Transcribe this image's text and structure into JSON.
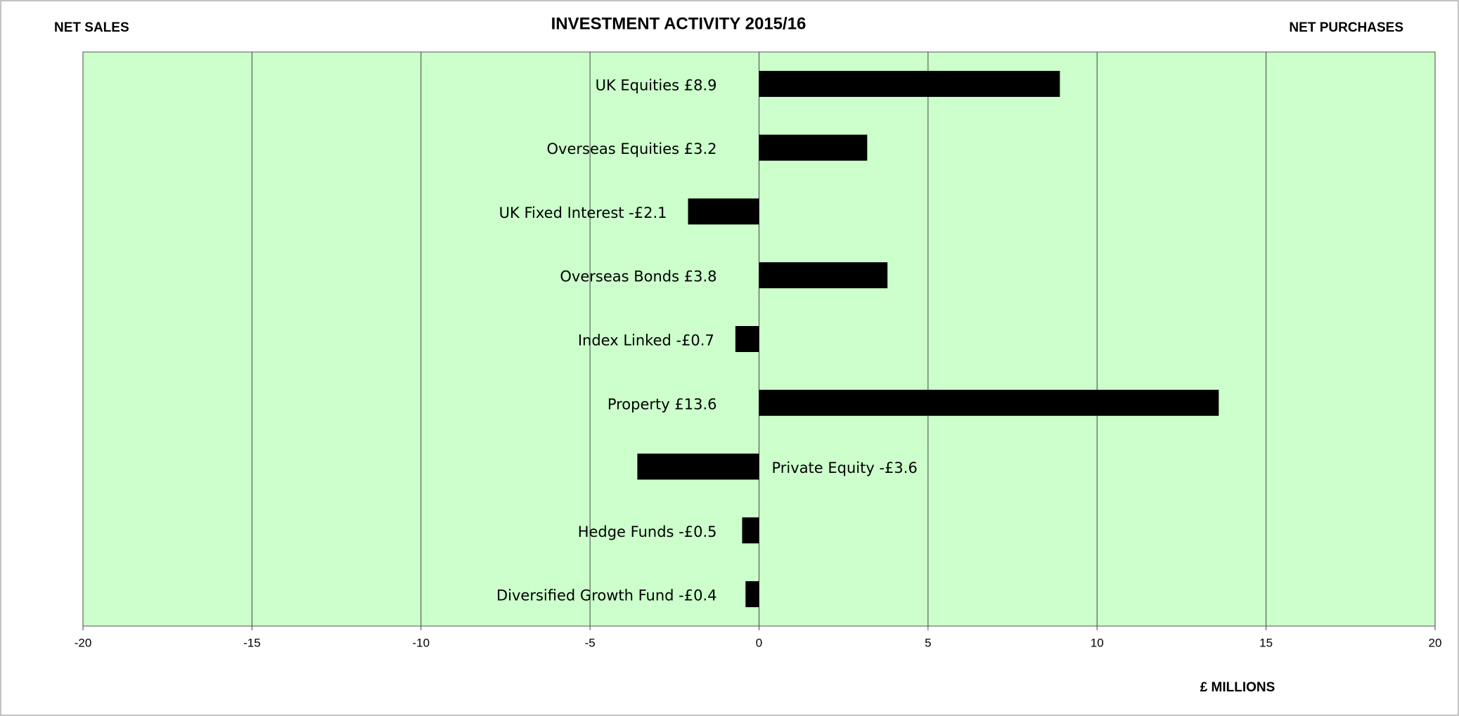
{
  "chart_data": {
    "type": "hbar",
    "title": "INVESTMENT ACTIVITY 2015/16",
    "annotations": [
      "NET SALES",
      "NET PURCHASES"
    ],
    "xlabel": "£ MILLIONS",
    "categories": [
      "UK Equities £8.9",
      "Overseas Equities £3.2",
      "UK Fixed Interest -£2.1",
      "Overseas Bonds £3.8",
      "Index Linked -£0.7",
      "Property £13.6",
      "Private Equity -£3.6",
      "Hedge Funds -£0.5",
      "Diversified Growth Fund -£0.4"
    ],
    "values": [
      8.9,
      3.2,
      -2.1,
      3.8,
      -0.7,
      13.6,
      -3.6,
      -0.5,
      -0.4
    ],
    "color": "#000000",
    "plot_background": "#ccffcc",
    "xlim": [
      -20,
      20
    ],
    "xticks": [
      -20,
      -15,
      -10,
      -5,
      0,
      5,
      10,
      15,
      20
    ],
    "grid": true
  }
}
